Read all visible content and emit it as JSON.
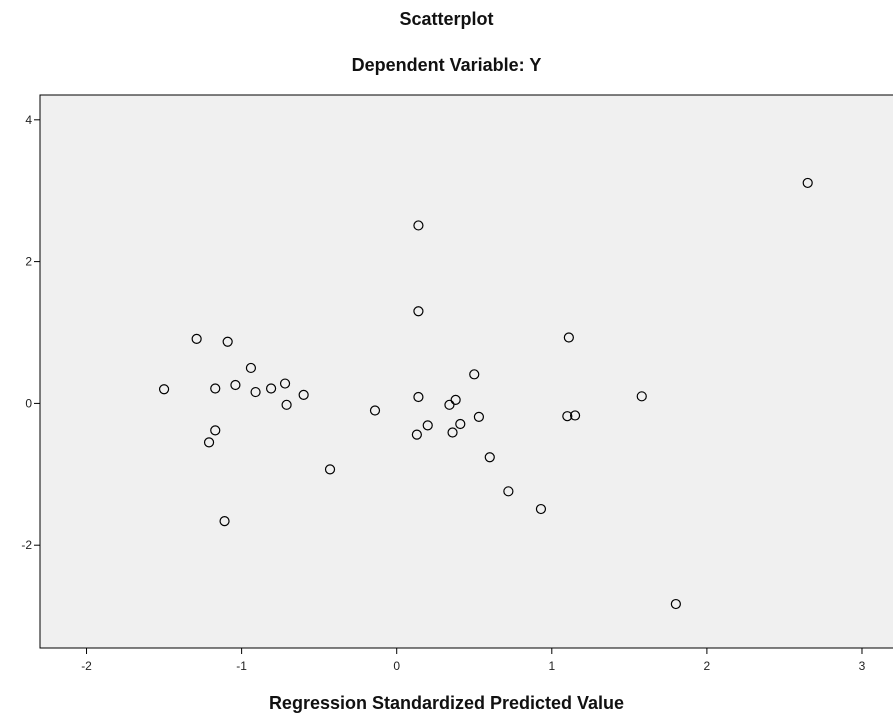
{
  "chart_data": {
    "type": "scatter",
    "title": "Scatterplot",
    "subtitle": "Dependent Variable: Y",
    "xlabel": "Regression Standardized Predicted Value",
    "ylabel": "",
    "xlim": [
      -2.3,
      3.2
    ],
    "ylim": [
      -3.45,
      4.35
    ],
    "xticks": [
      -2,
      -1,
      0,
      1,
      2,
      3
    ],
    "yticks": [
      -2,
      0,
      2,
      4
    ],
    "grid": false,
    "legend": "none",
    "colors": {
      "plot_background": "#f0f0f0",
      "marker_stroke": "#000000",
      "axis": "#000000"
    },
    "series": [
      {
        "x": [
          -1.5,
          -1.29,
          -1.09,
          -1.17,
          -1.04,
          -0.94,
          -0.91,
          -0.81,
          -0.72,
          -0.71,
          -0.6,
          -1.17,
          -1.21,
          -1.11,
          -0.43,
          -0.14,
          0.14,
          0.14,
          0.14,
          0.13,
          0.2,
          0.34,
          0.38,
          0.36,
          0.41,
          0.5,
          0.53,
          0.6,
          0.72,
          0.93,
          1.11,
          1.1,
          1.15,
          1.58,
          1.8,
          2.65
        ],
        "y": [
          0.2,
          0.91,
          0.87,
          0.21,
          0.26,
          0.5,
          0.16,
          0.21,
          0.28,
          -0.02,
          0.12,
          -0.38,
          -0.55,
          -1.66,
          -0.93,
          -0.1,
          2.51,
          1.3,
          0.09,
          -0.44,
          -0.31,
          -0.02,
          0.05,
          -0.41,
          -0.29,
          0.41,
          -0.19,
          -0.76,
          -1.24,
          -1.49,
          0.93,
          -0.18,
          -0.17,
          0.1,
          -2.83,
          3.11
        ]
      }
    ]
  }
}
